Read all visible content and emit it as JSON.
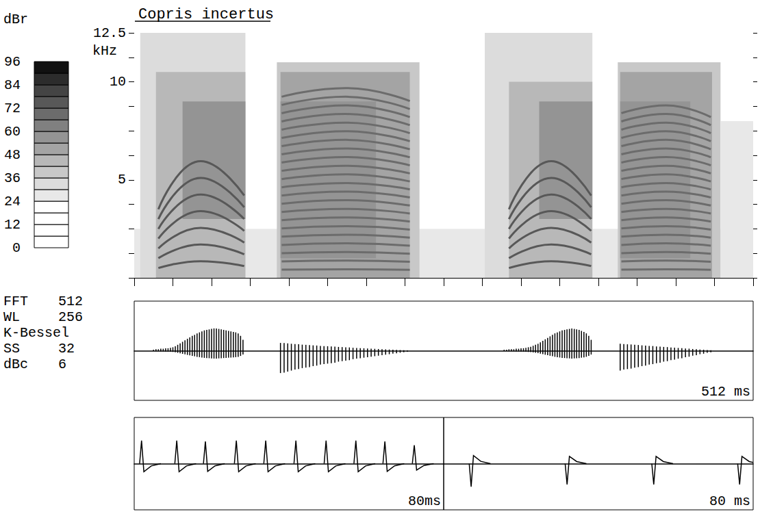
{
  "analysis_settings": [
    {
      "label": "FFT",
      "value": 512
    },
    {
      "label": "WL",
      "value": 256
    },
    {
      "label": "K-Bessel"
    },
    {
      "label": "SS",
      "value": 32
    },
    {
      "label": "dBc",
      "value": 6
    }
  ],
  "chart_data": [
    {
      "type": "spectrogram",
      "title": "Copris incertus",
      "y_label": "kHz",
      "xlim": [
        0,
        512
      ],
      "xticks": [
        0,
        32,
        64,
        96,
        128,
        160,
        192,
        224,
        256,
        288,
        320,
        352,
        384,
        416,
        448,
        480,
        512
      ],
      "ylim": [
        0,
        12.5
      ],
      "yticks": [
        5,
        10,
        12.5
      ],
      "y_minor_ticks": [
        0,
        1.25,
        2.5,
        3.75,
        5,
        6.25,
        7.5,
        8.75,
        10,
        11.25,
        12.5
      ],
      "tick_labels": "y",
      "grid": false,
      "colorbar": {
        "label": "dBr",
        "range": [
          0,
          96
        ],
        "ticks": [
          0,
          12,
          24,
          36,
          48,
          60,
          72,
          84,
          96
        ],
        "bins": [
          0,
          6,
          12,
          18,
          24,
          30,
          36,
          42,
          48,
          54,
          60,
          66,
          72,
          78,
          84,
          90,
          96
        ],
        "colors": [
          "#ffffff",
          "#ffffff",
          "#ffffff",
          "#ffffff",
          "#e8e8e8",
          "#dcdcdc",
          "#c8c8c8",
          "#b8b8b8",
          "#a4a4a4",
          "#949494",
          "#808080",
          "#6c6c6c",
          "#585858",
          "#444444",
          "#2c2c2c",
          "#111111"
        ]
      },
      "layers": [
        {
          "t": [
            0,
            512
          ],
          "f": [
            0,
            2.5
          ],
          "dB": 26
        },
        {
          "t": [
            5,
            92
          ],
          "f": [
            0,
            12.5
          ],
          "dB": 30
        },
        {
          "t": [
            18,
            92
          ],
          "f": [
            0,
            10.5
          ],
          "dB": 42
        },
        {
          "t": [
            40,
            92
          ],
          "f": [
            3,
            9
          ],
          "dB": 54
        },
        {
          "t": [
            118,
            236
          ],
          "f": [
            0,
            11
          ],
          "dB": 36
        },
        {
          "t": [
            121,
            228
          ],
          "f": [
            0,
            10.5
          ],
          "dB": 48
        },
        {
          "t": [
            121,
            200
          ],
          "f": [
            1,
            9
          ],
          "dB": 56
        },
        {
          "t": [
            290,
            379
          ],
          "f": [
            0,
            12.5
          ],
          "dB": 30
        },
        {
          "t": [
            310,
            379
          ],
          "f": [
            0,
            10
          ],
          "dB": 42
        },
        {
          "t": [
            335,
            379
          ],
          "f": [
            3,
            9
          ],
          "dB": 54
        },
        {
          "t": [
            400,
            485
          ],
          "f": [
            0,
            11
          ],
          "dB": 36
        },
        {
          "t": [
            402,
            478
          ],
          "f": [
            0,
            10.5
          ],
          "dB": 48
        },
        {
          "t": [
            402,
            460
          ],
          "f": [
            1,
            9
          ],
          "dB": 56
        },
        {
          "t": [
            485,
            512
          ],
          "f": [
            0,
            8
          ],
          "dB": 26
        }
      ],
      "harmonics": [
        {
          "dB": 76,
          "times": [
            20,
            55,
            91
          ],
          "freqs": [
            [
              0.5,
              0.85,
              0.6
            ],
            [
              1.0,
              1.7,
              1.2
            ],
            [
              1.5,
              2.55,
              1.8
            ],
            [
              2.0,
              3.4,
              2.4
            ],
            [
              2.5,
              4.25,
              3.0
            ],
            [
              3.0,
              5.1,
              3.6
            ],
            [
              3.5,
              5.95,
              4.2
            ]
          ]
        },
        {
          "dB": 68,
          "times": [
            122,
            175,
            228
          ],
          "freqs": [
            [
              0.42,
              0.44,
              0.41
            ],
            [
              0.84,
              0.88,
              0.82
            ],
            [
              1.26,
              1.32,
              1.23
            ],
            [
              1.68,
              1.76,
              1.64
            ],
            [
              2.1,
              2.2,
              2.05
            ],
            [
              2.52,
              2.64,
              2.46
            ],
            [
              2.94,
              3.08,
              2.87
            ],
            [
              3.36,
              3.52,
              3.28
            ],
            [
              3.78,
              3.96,
              3.69
            ],
            [
              4.2,
              4.4,
              4.1
            ],
            [
              4.62,
              4.84,
              4.51
            ],
            [
              5.04,
              5.28,
              4.92
            ],
            [
              5.46,
              5.72,
              5.33
            ],
            [
              5.88,
              6.16,
              5.74
            ],
            [
              6.3,
              6.6,
              6.15
            ],
            [
              6.72,
              7.04,
              6.56
            ],
            [
              7.14,
              7.48,
              6.97
            ],
            [
              7.56,
              7.92,
              7.38
            ],
            [
              7.98,
              8.36,
              7.79
            ],
            [
              8.4,
              8.8,
              8.2
            ],
            [
              8.82,
              9.24,
              8.61
            ],
            [
              9.24,
              9.68,
              9.02
            ]
          ]
        },
        {
          "dB": 76,
          "times": [
            310,
            345,
            378
          ],
          "freqs": [
            [
              0.5,
              0.85,
              0.6
            ],
            [
              1.0,
              1.7,
              1.2
            ],
            [
              1.5,
              2.55,
              1.8
            ],
            [
              2.0,
              3.4,
              2.4
            ],
            [
              2.5,
              4.25,
              3.0
            ],
            [
              3.0,
              5.1,
              3.6
            ],
            [
              3.5,
              5.95,
              4.2
            ]
          ]
        },
        {
          "dB": 68,
          "times": [
            403,
            440,
            477
          ],
          "freqs": [
            [
              0.42,
              0.44,
              0.41
            ],
            [
              0.84,
              0.88,
              0.82
            ],
            [
              1.26,
              1.32,
              1.23
            ],
            [
              1.68,
              1.76,
              1.64
            ],
            [
              2.1,
              2.2,
              2.05
            ],
            [
              2.52,
              2.64,
              2.46
            ],
            [
              2.94,
              3.08,
              2.87
            ],
            [
              3.36,
              3.52,
              3.28
            ],
            [
              3.78,
              3.96,
              3.69
            ],
            [
              4.2,
              4.4,
              4.1
            ],
            [
              4.62,
              4.84,
              4.51
            ],
            [
              5.04,
              5.28,
              4.92
            ],
            [
              5.46,
              5.72,
              5.33
            ],
            [
              5.88,
              6.16,
              5.74
            ],
            [
              6.3,
              6.6,
              6.15
            ],
            [
              6.72,
              7.04,
              6.56
            ],
            [
              7.14,
              7.48,
              6.97
            ],
            [
              7.56,
              7.92,
              7.38
            ],
            [
              7.98,
              8.36,
              7.79
            ],
            [
              8.4,
              8.8,
              8.2
            ]
          ]
        }
      ]
    },
    {
      "type": "oscillogram",
      "duration_label": "512 ms",
      "marker": "line",
      "tick_labels": false,
      "xlim": [
        0,
        512
      ],
      "ylim": [
        -1,
        1
      ],
      "pulses": [
        [
          16,
          0.02
        ],
        [
          18,
          0.03
        ],
        [
          20,
          0.03
        ],
        [
          22,
          0.04
        ],
        [
          24,
          0.04
        ],
        [
          26,
          0.05
        ],
        [
          28,
          0.05
        ],
        [
          30,
          0.06
        ],
        [
          32,
          0.07
        ],
        [
          34,
          0.09
        ],
        [
          36,
          0.12
        ],
        [
          38,
          0.15
        ],
        [
          40,
          0.18
        ],
        [
          42,
          0.21
        ],
        [
          44,
          0.24
        ],
        [
          46,
          0.27
        ],
        [
          48,
          0.3
        ],
        [
          50,
          0.32
        ],
        [
          52,
          0.35
        ],
        [
          54,
          0.37
        ],
        [
          56,
          0.39
        ],
        [
          58,
          0.41
        ],
        [
          60,
          0.42
        ],
        [
          62,
          0.43
        ],
        [
          64,
          0.44
        ],
        [
          66,
          0.45
        ],
        [
          68,
          0.45
        ],
        [
          70,
          0.44
        ],
        [
          72,
          0.43
        ],
        [
          74,
          0.42
        ],
        [
          76,
          0.41
        ],
        [
          78,
          0.4
        ],
        [
          80,
          0.39
        ],
        [
          82,
          0.38
        ],
        [
          84,
          0.37
        ],
        [
          86,
          0.35
        ],
        [
          88,
          0.3
        ],
        [
          90,
          0.22
        ],
        [
          121,
          -0.45
        ],
        [
          124,
          -0.44
        ],
        [
          127,
          -0.42
        ],
        [
          130,
          -0.4
        ],
        [
          133,
          -0.38
        ],
        [
          136,
          -0.37
        ],
        [
          139,
          -0.35
        ],
        [
          142,
          -0.34
        ],
        [
          145,
          -0.33
        ],
        [
          148,
          -0.31
        ],
        [
          151,
          -0.3
        ],
        [
          154,
          -0.28
        ],
        [
          157,
          -0.27
        ],
        [
          160,
          -0.26
        ],
        [
          163,
          -0.25
        ],
        [
          166,
          -0.24
        ],
        [
          169,
          -0.22
        ],
        [
          172,
          -0.21
        ],
        [
          175,
          -0.2
        ],
        [
          178,
          -0.19
        ],
        [
          181,
          -0.17
        ],
        [
          184,
          -0.16
        ],
        [
          187,
          -0.15
        ],
        [
          190,
          -0.14
        ],
        [
          193,
          -0.13
        ],
        [
          196,
          -0.12
        ],
        [
          199,
          -0.11
        ],
        [
          202,
          -0.1
        ],
        [
          205,
          -0.09
        ],
        [
          208,
          -0.08
        ],
        [
          211,
          -0.07
        ],
        [
          214,
          -0.06
        ],
        [
          217,
          -0.05
        ],
        [
          220,
          -0.04
        ],
        [
          223,
          -0.03
        ],
        [
          226,
          -0.02
        ],
        [
          306,
          0.02
        ],
        [
          308,
          0.02
        ],
        [
          310,
          0.03
        ],
        [
          312,
          0.03
        ],
        [
          314,
          0.03
        ],
        [
          316,
          0.04
        ],
        [
          318,
          0.04
        ],
        [
          320,
          0.05
        ],
        [
          322,
          0.05
        ],
        [
          324,
          0.06
        ],
        [
          326,
          0.07
        ],
        [
          328,
          0.08
        ],
        [
          330,
          0.1
        ],
        [
          332,
          0.12
        ],
        [
          334,
          0.14
        ],
        [
          336,
          0.17
        ],
        [
          338,
          0.2
        ],
        [
          340,
          0.23
        ],
        [
          342,
          0.26
        ],
        [
          344,
          0.29
        ],
        [
          346,
          0.32
        ],
        [
          348,
          0.35
        ],
        [
          350,
          0.37
        ],
        [
          352,
          0.39
        ],
        [
          354,
          0.41
        ],
        [
          356,
          0.42
        ],
        [
          358,
          0.43
        ],
        [
          360,
          0.44
        ],
        [
          362,
          0.45
        ],
        [
          364,
          0.44
        ],
        [
          366,
          0.43
        ],
        [
          368,
          0.42
        ],
        [
          370,
          0.4
        ],
        [
          372,
          0.38
        ],
        [
          374,
          0.35
        ],
        [
          376,
          0.3
        ],
        [
          378,
          0.22
        ],
        [
          402,
          -0.4
        ],
        [
          405,
          -0.38
        ],
        [
          408,
          -0.37
        ],
        [
          411,
          -0.36
        ],
        [
          414,
          -0.34
        ],
        [
          417,
          -0.33
        ],
        [
          420,
          -0.31
        ],
        [
          423,
          -0.3
        ],
        [
          426,
          -0.28
        ],
        [
          429,
          -0.27
        ],
        [
          432,
          -0.25
        ],
        [
          435,
          -0.24
        ],
        [
          438,
          -0.22
        ],
        [
          441,
          -0.21
        ],
        [
          444,
          -0.19
        ],
        [
          447,
          -0.18
        ],
        [
          450,
          -0.16
        ],
        [
          453,
          -0.15
        ],
        [
          456,
          -0.13
        ],
        [
          459,
          -0.12
        ],
        [
          462,
          -0.1
        ],
        [
          465,
          -0.09
        ],
        [
          468,
          -0.07
        ],
        [
          471,
          -0.06
        ],
        [
          474,
          -0.04
        ],
        [
          477,
          -0.03
        ]
      ]
    },
    {
      "type": "oscillogram",
      "duration_label": "80ms",
      "marker": "spike",
      "tick_labels": false,
      "xlim": [
        0,
        80
      ],
      "ylim": [
        -1,
        1
      ],
      "pulses": [
        [
          1.9,
          0.5
        ],
        [
          11.0,
          0.5
        ],
        [
          18.4,
          0.48
        ],
        [
          26.4,
          0.5
        ],
        [
          34.0,
          0.5
        ],
        [
          41.8,
          0.5
        ],
        [
          49.6,
          0.5
        ],
        [
          57.3,
          0.5
        ],
        [
          64.8,
          0.48
        ],
        [
          72.4,
          0.4
        ]
      ]
    },
    {
      "type": "oscillogram",
      "duration_label": "80 ms",
      "marker": "spike",
      "tick_labels": false,
      "xlim": [
        0,
        80
      ],
      "ylim": [
        -1,
        1
      ],
      "pulses": [
        [
          7.1,
          -0.5
        ],
        [
          31.9,
          -0.45
        ],
        [
          54.3,
          -0.45
        ],
        [
          76.5,
          -0.45
        ]
      ]
    }
  ]
}
